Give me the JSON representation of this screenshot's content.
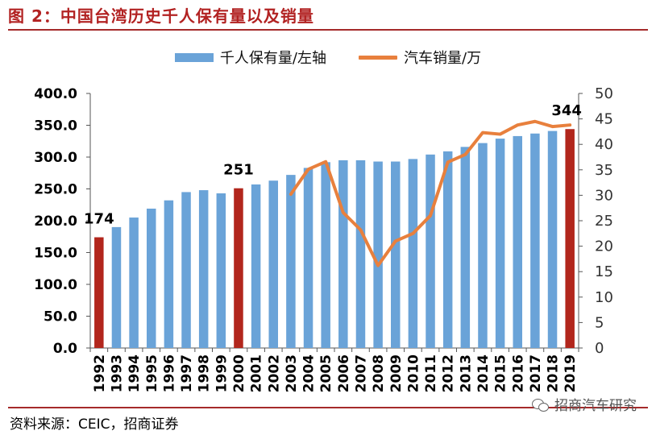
{
  "title": "图 2：中国台湾历史千人保有量以及销量",
  "colors": {
    "bar": "#6aa3d8",
    "bar_highlight": "#b2261c",
    "line": "#e8803d",
    "title": "#b22222",
    "rule": "#a52a2a"
  },
  "legend": {
    "bar_label": "千人保有量/左轴",
    "line_label": "汽车销量/万"
  },
  "source": "资料来源：CEIC，招商证券",
  "watermark": "招商汽车研究",
  "chart_data": {
    "type": "bar+line",
    "categories": [
      "1992",
      "1993",
      "1994",
      "1995",
      "1996",
      "1997",
      "1998",
      "1999",
      "2000",
      "2001",
      "2002",
      "2003",
      "2004",
      "2005",
      "2006",
      "2007",
      "2008",
      "2009",
      "2010",
      "2011",
      "2012",
      "2013",
      "2014",
      "2015",
      "2016",
      "2017",
      "2018",
      "2019"
    ],
    "series": [
      {
        "name": "千人保有量/左轴",
        "type": "bar",
        "axis": "left",
        "values": [
          174,
          190,
          205,
          219,
          232,
          245,
          248,
          243,
          251,
          257,
          263,
          272,
          283,
          292,
          295,
          295,
          293,
          293,
          297,
          304,
          309,
          316,
          322,
          329,
          333,
          337,
          341,
          344
        ],
        "highlight": [
          "1992",
          "2000",
          "2019"
        ]
      },
      {
        "name": "汽车销量/万",
        "type": "line",
        "axis": "right",
        "x": [
          "2003",
          "2004",
          "2005",
          "2006",
          "2007",
          "2008",
          "2009",
          "2010",
          "2011",
          "2012",
          "2013",
          "2014",
          "2015",
          "2016",
          "2017",
          "2018",
          "2019"
        ],
        "values": [
          30.2,
          35.1,
          36.6,
          26.6,
          23.2,
          16.2,
          21.0,
          22.5,
          26.0,
          36.5,
          38.0,
          42.3,
          42.0,
          43.8,
          44.5,
          43.5,
          43.8
        ]
      }
    ],
    "data_labels": [
      {
        "x": "1992",
        "text": "174"
      },
      {
        "x": "2000",
        "text": "251"
      },
      {
        "x": "2019",
        "text": "344"
      }
    ],
    "y_left": {
      "ylim": [
        0,
        400
      ],
      "ticks": [
        "0.0",
        "50.0",
        "100.0",
        "150.0",
        "200.0",
        "250.0",
        "300.0",
        "350.0",
        "400.0"
      ]
    },
    "y_right": {
      "ylim": [
        0,
        50
      ],
      "ticks": [
        "0",
        "5",
        "10",
        "15",
        "20",
        "25",
        "30",
        "35",
        "40",
        "45",
        "50"
      ]
    },
    "grid": false,
    "legend_position": "top-center"
  }
}
